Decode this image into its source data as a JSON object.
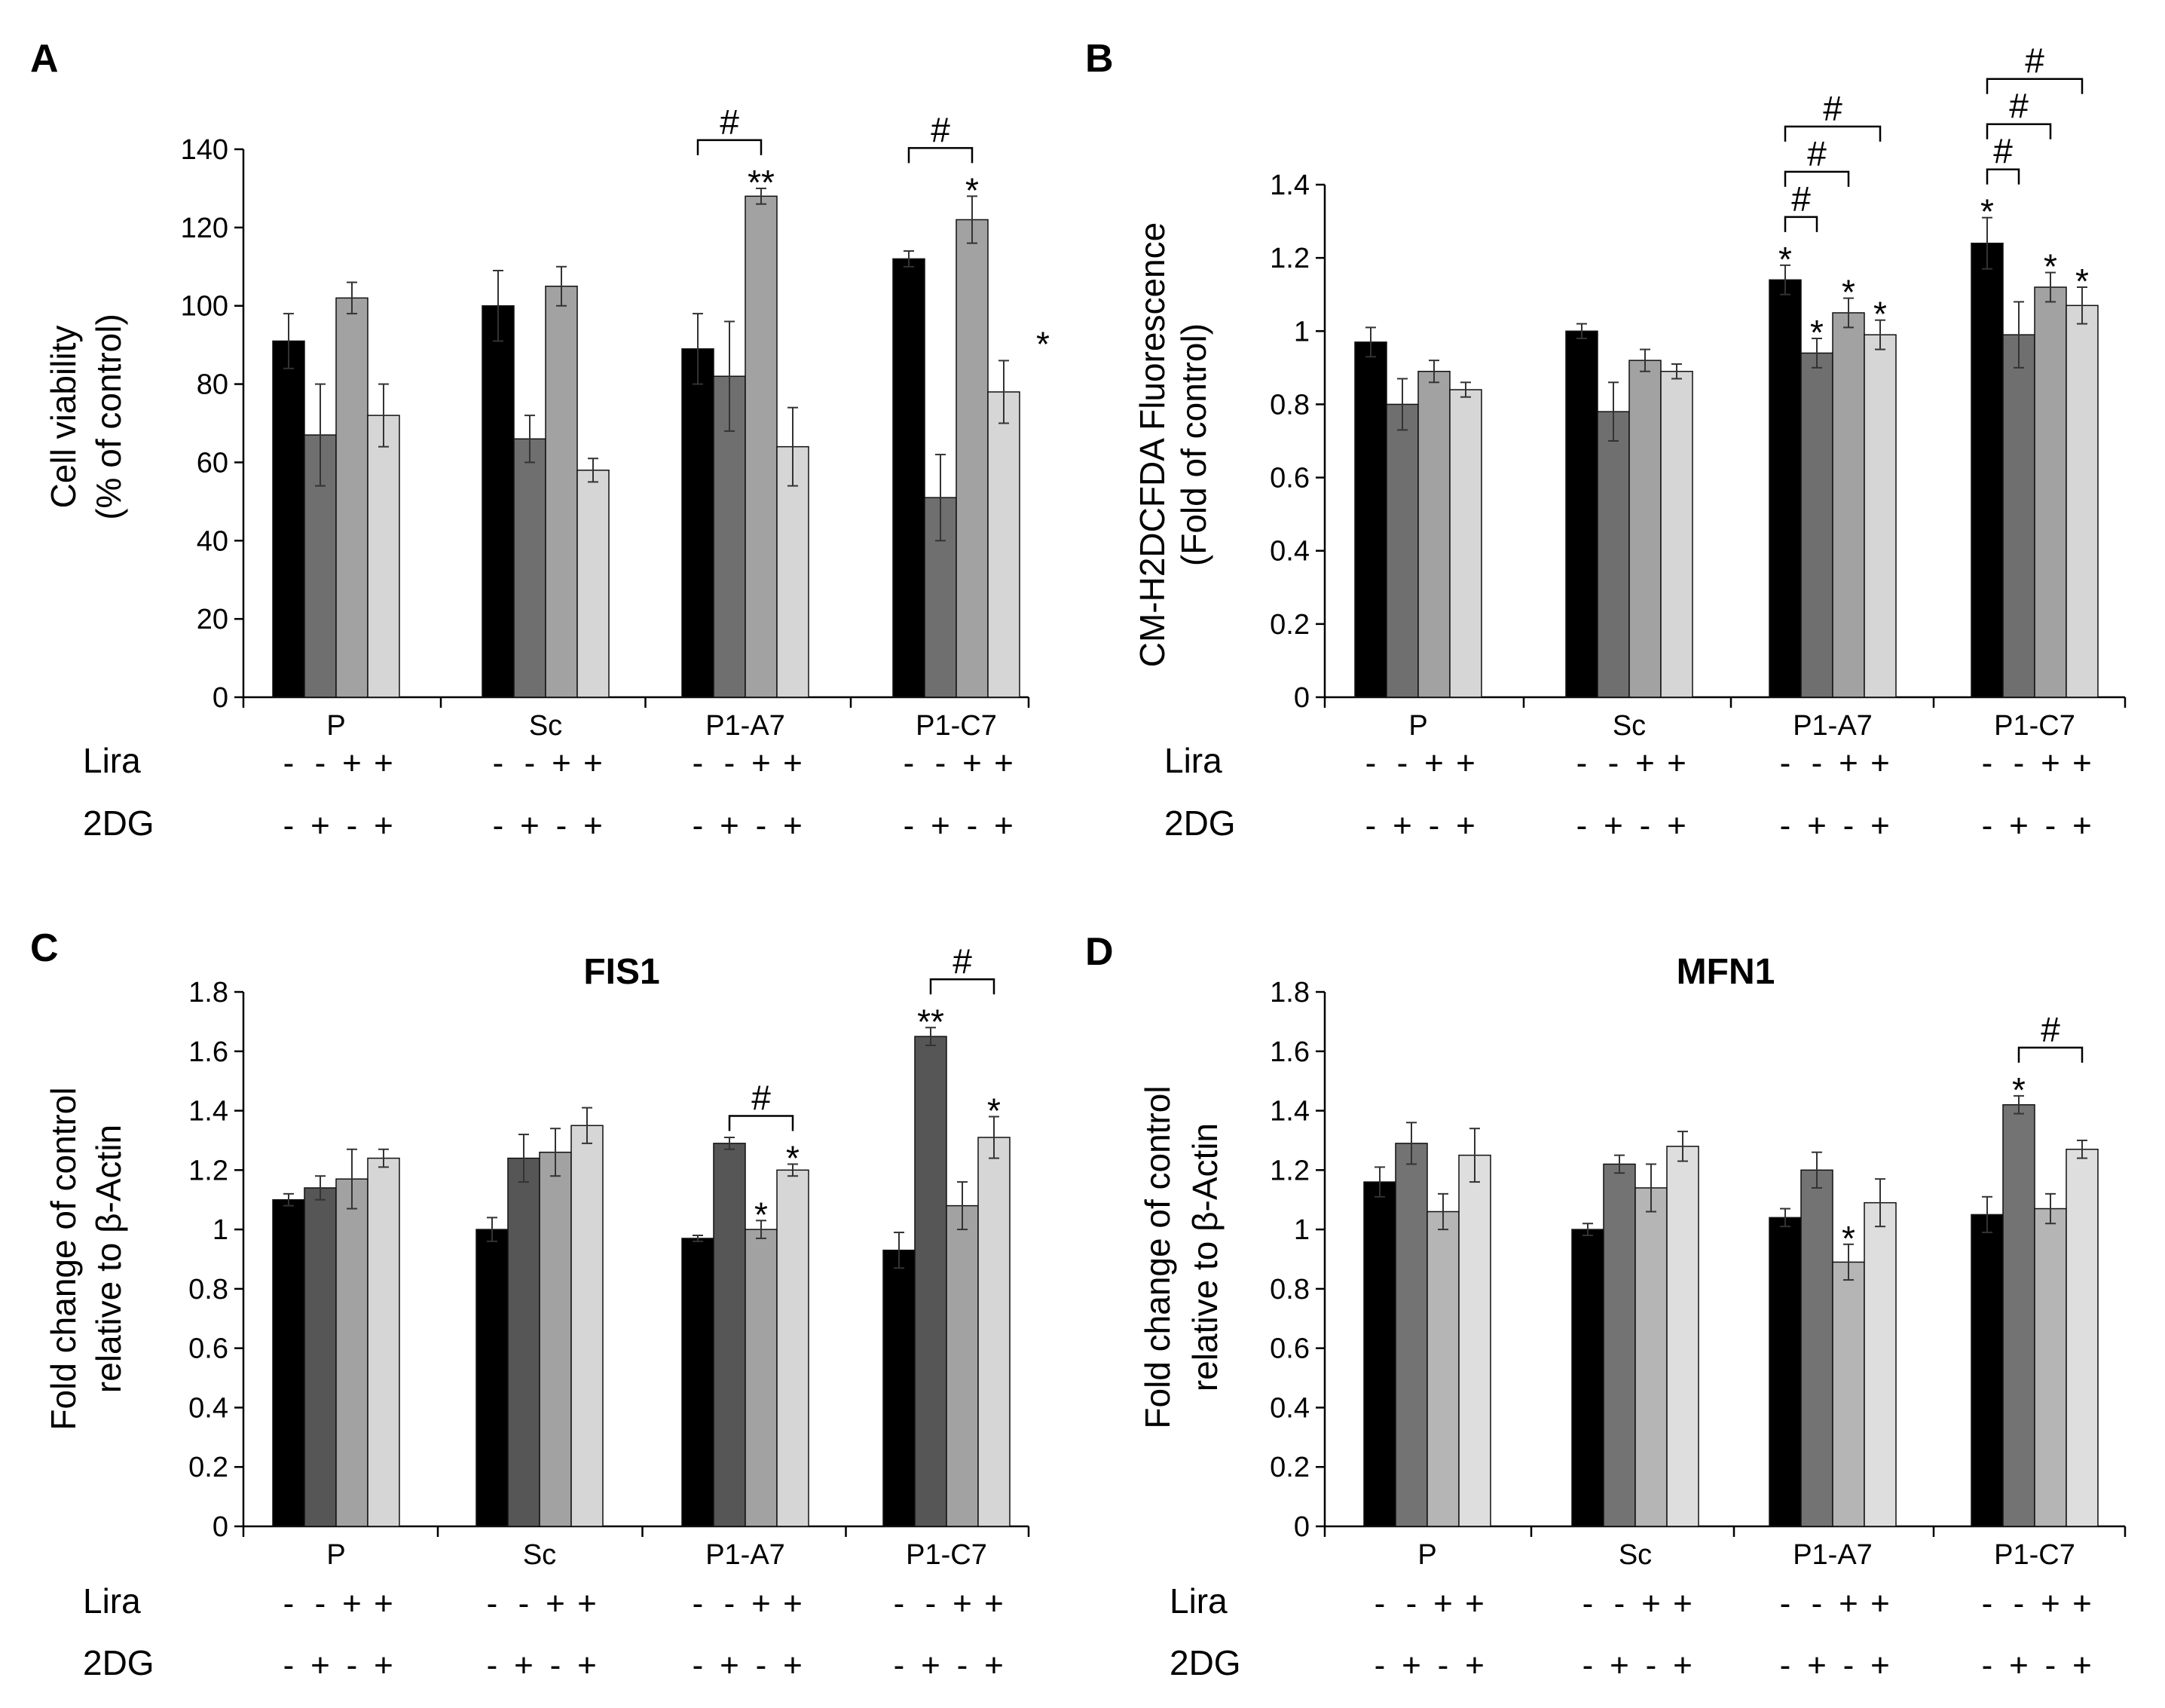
{
  "chart_data": [
    {
      "panel": "A",
      "type": "bar",
      "title": "",
      "xlabel": "",
      "ylabel": [
        "Cell viability",
        "(% of control)"
      ],
      "ylim": [
        0,
        140
      ],
      "yticks": [
        "0",
        "20",
        "40",
        "60",
        "80",
        "100",
        "120",
        "140"
      ],
      "grid": false,
      "categories": [
        "P",
        "Sc",
        "P1-A7",
        "P1-C7"
      ],
      "series": [
        {
          "name": "Lira -, 2DG -",
          "color": "#000000",
          "values": [
            91,
            100,
            89,
            112
          ],
          "errors": [
            7,
            9,
            9,
            2
          ]
        },
        {
          "name": "Lira -, 2DG +",
          "color": "#6f6f6f",
          "values": [
            67,
            66,
            82,
            51
          ],
          "errors": [
            13,
            6,
            14,
            11
          ]
        },
        {
          "name": "Lira +, 2DG -",
          "color": "#a2a2a2",
          "values": [
            102,
            105,
            128,
            122
          ],
          "errors": [
            4,
            5,
            2,
            6
          ]
        },
        {
          "name": "Lira +, 2DG +",
          "color": "#d6d6d6",
          "values": [
            72,
            58,
            64,
            78
          ],
          "errors": [
            8,
            3,
            10,
            8
          ]
        }
      ],
      "annotations": [
        {
          "text": "**",
          "group": 2,
          "bar": 2
        },
        {
          "text": "*",
          "group": 3,
          "bar": 2
        },
        {
          "text": "*",
          "group": 3,
          "bar": 3,
          "note": "beside bar"
        },
        {
          "text": "#",
          "group": 2,
          "bracket": [
            0,
            2
          ]
        },
        {
          "text": "#",
          "group": 3,
          "bracket": [
            0,
            2
          ]
        }
      ]
    },
    {
      "panel": "B",
      "type": "bar",
      "title": "",
      "xlabel": "",
      "ylabel": [
        "CM-H2DCFDA Fluorescence",
        "(Fold of control)"
      ],
      "ylim": [
        0,
        1.4
      ],
      "yticks": [
        "0",
        "0.2",
        "0.4",
        "0.6",
        "0.8",
        "1",
        "1.2",
        "1.4"
      ],
      "grid": false,
      "categories": [
        "P",
        "Sc",
        "P1-A7",
        "P1-C7"
      ],
      "series": [
        {
          "name": "Lira -, 2DG -",
          "color": "#000000",
          "values": [
            0.97,
            1.0,
            1.14,
            1.24
          ],
          "errors": [
            0.04,
            0.02,
            0.04,
            0.07
          ]
        },
        {
          "name": "Lira -, 2DG +",
          "color": "#6f6f6f",
          "values": [
            0.8,
            0.78,
            0.94,
            0.99
          ],
          "errors": [
            0.07,
            0.08,
            0.04,
            0.09
          ]
        },
        {
          "name": "Lira +, 2DG -",
          "color": "#a2a2a2",
          "values": [
            0.89,
            0.92,
            1.05,
            1.12
          ],
          "errors": [
            0.03,
            0.03,
            0.04,
            0.04
          ]
        },
        {
          "name": "Lira +, 2DG +",
          "color": "#d6d6d6",
          "values": [
            0.84,
            0.89,
            0.99,
            1.07
          ],
          "errors": [
            0.02,
            0.02,
            0.04,
            0.05
          ]
        }
      ],
      "annotations": [
        {
          "text": "*",
          "group": 2,
          "bar": 0
        },
        {
          "text": "*",
          "group": 2,
          "bar": 1
        },
        {
          "text": "*",
          "group": 2,
          "bar": 2
        },
        {
          "text": "*",
          "group": 2,
          "bar": 3
        },
        {
          "text": "*",
          "group": 3,
          "bar": 0
        },
        {
          "text": "*",
          "group": 3,
          "bar": 2
        },
        {
          "text": "*",
          "group": 3,
          "bar": 3
        },
        {
          "text": "#",
          "group": 2,
          "bracket": [
            0,
            1
          ]
        },
        {
          "text": "#",
          "group": 2,
          "bracket": [
            0,
            2
          ]
        },
        {
          "text": "#",
          "group": 2,
          "bracket": [
            0,
            3
          ]
        },
        {
          "text": "#",
          "group": 3,
          "bracket": [
            0,
            1
          ]
        },
        {
          "text": "#",
          "group": 3,
          "bracket": [
            0,
            2
          ]
        },
        {
          "text": "#",
          "group": 3,
          "bracket": [
            0,
            3
          ]
        }
      ]
    },
    {
      "panel": "C",
      "type": "bar",
      "title": "FIS1",
      "xlabel": "",
      "ylabel": [
        "Fold change of control",
        "relative to β-Actin"
      ],
      "ylim": [
        0,
        1.8
      ],
      "yticks": [
        "0",
        "0.2",
        "0.4",
        "0.6",
        "0.8",
        "1",
        "1.2",
        "1.4",
        "1.6",
        "1.8"
      ],
      "grid": false,
      "categories": [
        "P",
        "Sc",
        "P1-A7",
        "P1-C7"
      ],
      "series": [
        {
          "name": "Lira -, 2DG -",
          "color": "#000000",
          "values": [
            1.1,
            1.0,
            0.97,
            0.93
          ],
          "errors": [
            0.02,
            0.04,
            0.01,
            0.06
          ]
        },
        {
          "name": "Lira -, 2DG +",
          "color": "#565656",
          "values": [
            1.14,
            1.24,
            1.29,
            1.65
          ],
          "errors": [
            0.04,
            0.08,
            0.02,
            0.03
          ]
        },
        {
          "name": "Lira +, 2DG -",
          "color": "#a2a2a2",
          "values": [
            1.17,
            1.26,
            1.0,
            1.08
          ],
          "errors": [
            0.1,
            0.08,
            0.03,
            0.08
          ]
        },
        {
          "name": "Lira +, 2DG +",
          "color": "#d6d6d6",
          "values": [
            1.24,
            1.35,
            1.2,
            1.31
          ],
          "errors": [
            0.03,
            0.06,
            0.02,
            0.07
          ]
        }
      ],
      "annotations": [
        {
          "text": "*",
          "group": 2,
          "bar": 2
        },
        {
          "text": "*",
          "group": 2,
          "bar": 3
        },
        {
          "text": "**",
          "group": 3,
          "bar": 1
        },
        {
          "text": "*",
          "group": 3,
          "bar": 3
        },
        {
          "text": "#",
          "group": 2,
          "bracket": [
            1,
            3
          ]
        },
        {
          "text": "#",
          "group": 3,
          "bracket": [
            1,
            3
          ]
        }
      ]
    },
    {
      "panel": "D",
      "type": "bar",
      "title": "MFN1",
      "xlabel": "",
      "ylabel": [
        "Fold change of control",
        "relative to β-Actin"
      ],
      "ylim": [
        0,
        1.8
      ],
      "yticks": [
        "0",
        "0.2",
        "0.4",
        "0.6",
        "0.8",
        "1",
        "1.2",
        "1.4",
        "1.6",
        "1.8"
      ],
      "grid": false,
      "categories": [
        "P",
        "Sc",
        "P1-A7",
        "P1-C7"
      ],
      "series": [
        {
          "name": "Lira -, 2DG -",
          "color": "#000000",
          "values": [
            1.16,
            1.0,
            1.04,
            1.05
          ],
          "errors": [
            0.05,
            0.02,
            0.03,
            0.06
          ]
        },
        {
          "name": "Lira -, 2DG +",
          "color": "#737373",
          "values": [
            1.29,
            1.22,
            1.2,
            1.42
          ],
          "errors": [
            0.07,
            0.03,
            0.06,
            0.03
          ]
        },
        {
          "name": "Lira +, 2DG -",
          "color": "#b5b5b5",
          "values": [
            1.06,
            1.14,
            0.89,
            1.07
          ],
          "errors": [
            0.06,
            0.08,
            0.06,
            0.05
          ]
        },
        {
          "name": "Lira +, 2DG +",
          "color": "#dedede",
          "values": [
            1.25,
            1.28,
            1.09,
            1.27
          ],
          "errors": [
            0.09,
            0.05,
            0.08,
            0.03
          ]
        }
      ],
      "annotations": [
        {
          "text": "*",
          "group": 2,
          "bar": 2
        },
        {
          "text": "*",
          "group": 3,
          "bar": 1
        },
        {
          "text": "#",
          "group": 3,
          "bracket": [
            1,
            3
          ]
        }
      ]
    }
  ],
  "treatment_rows": {
    "lira": {
      "label": "Lira",
      "signs": [
        "-",
        "-",
        "+",
        "+"
      ]
    },
    "dg": {
      "label": "2DG",
      "signs": [
        "-",
        "+",
        "-",
        "+"
      ]
    }
  }
}
